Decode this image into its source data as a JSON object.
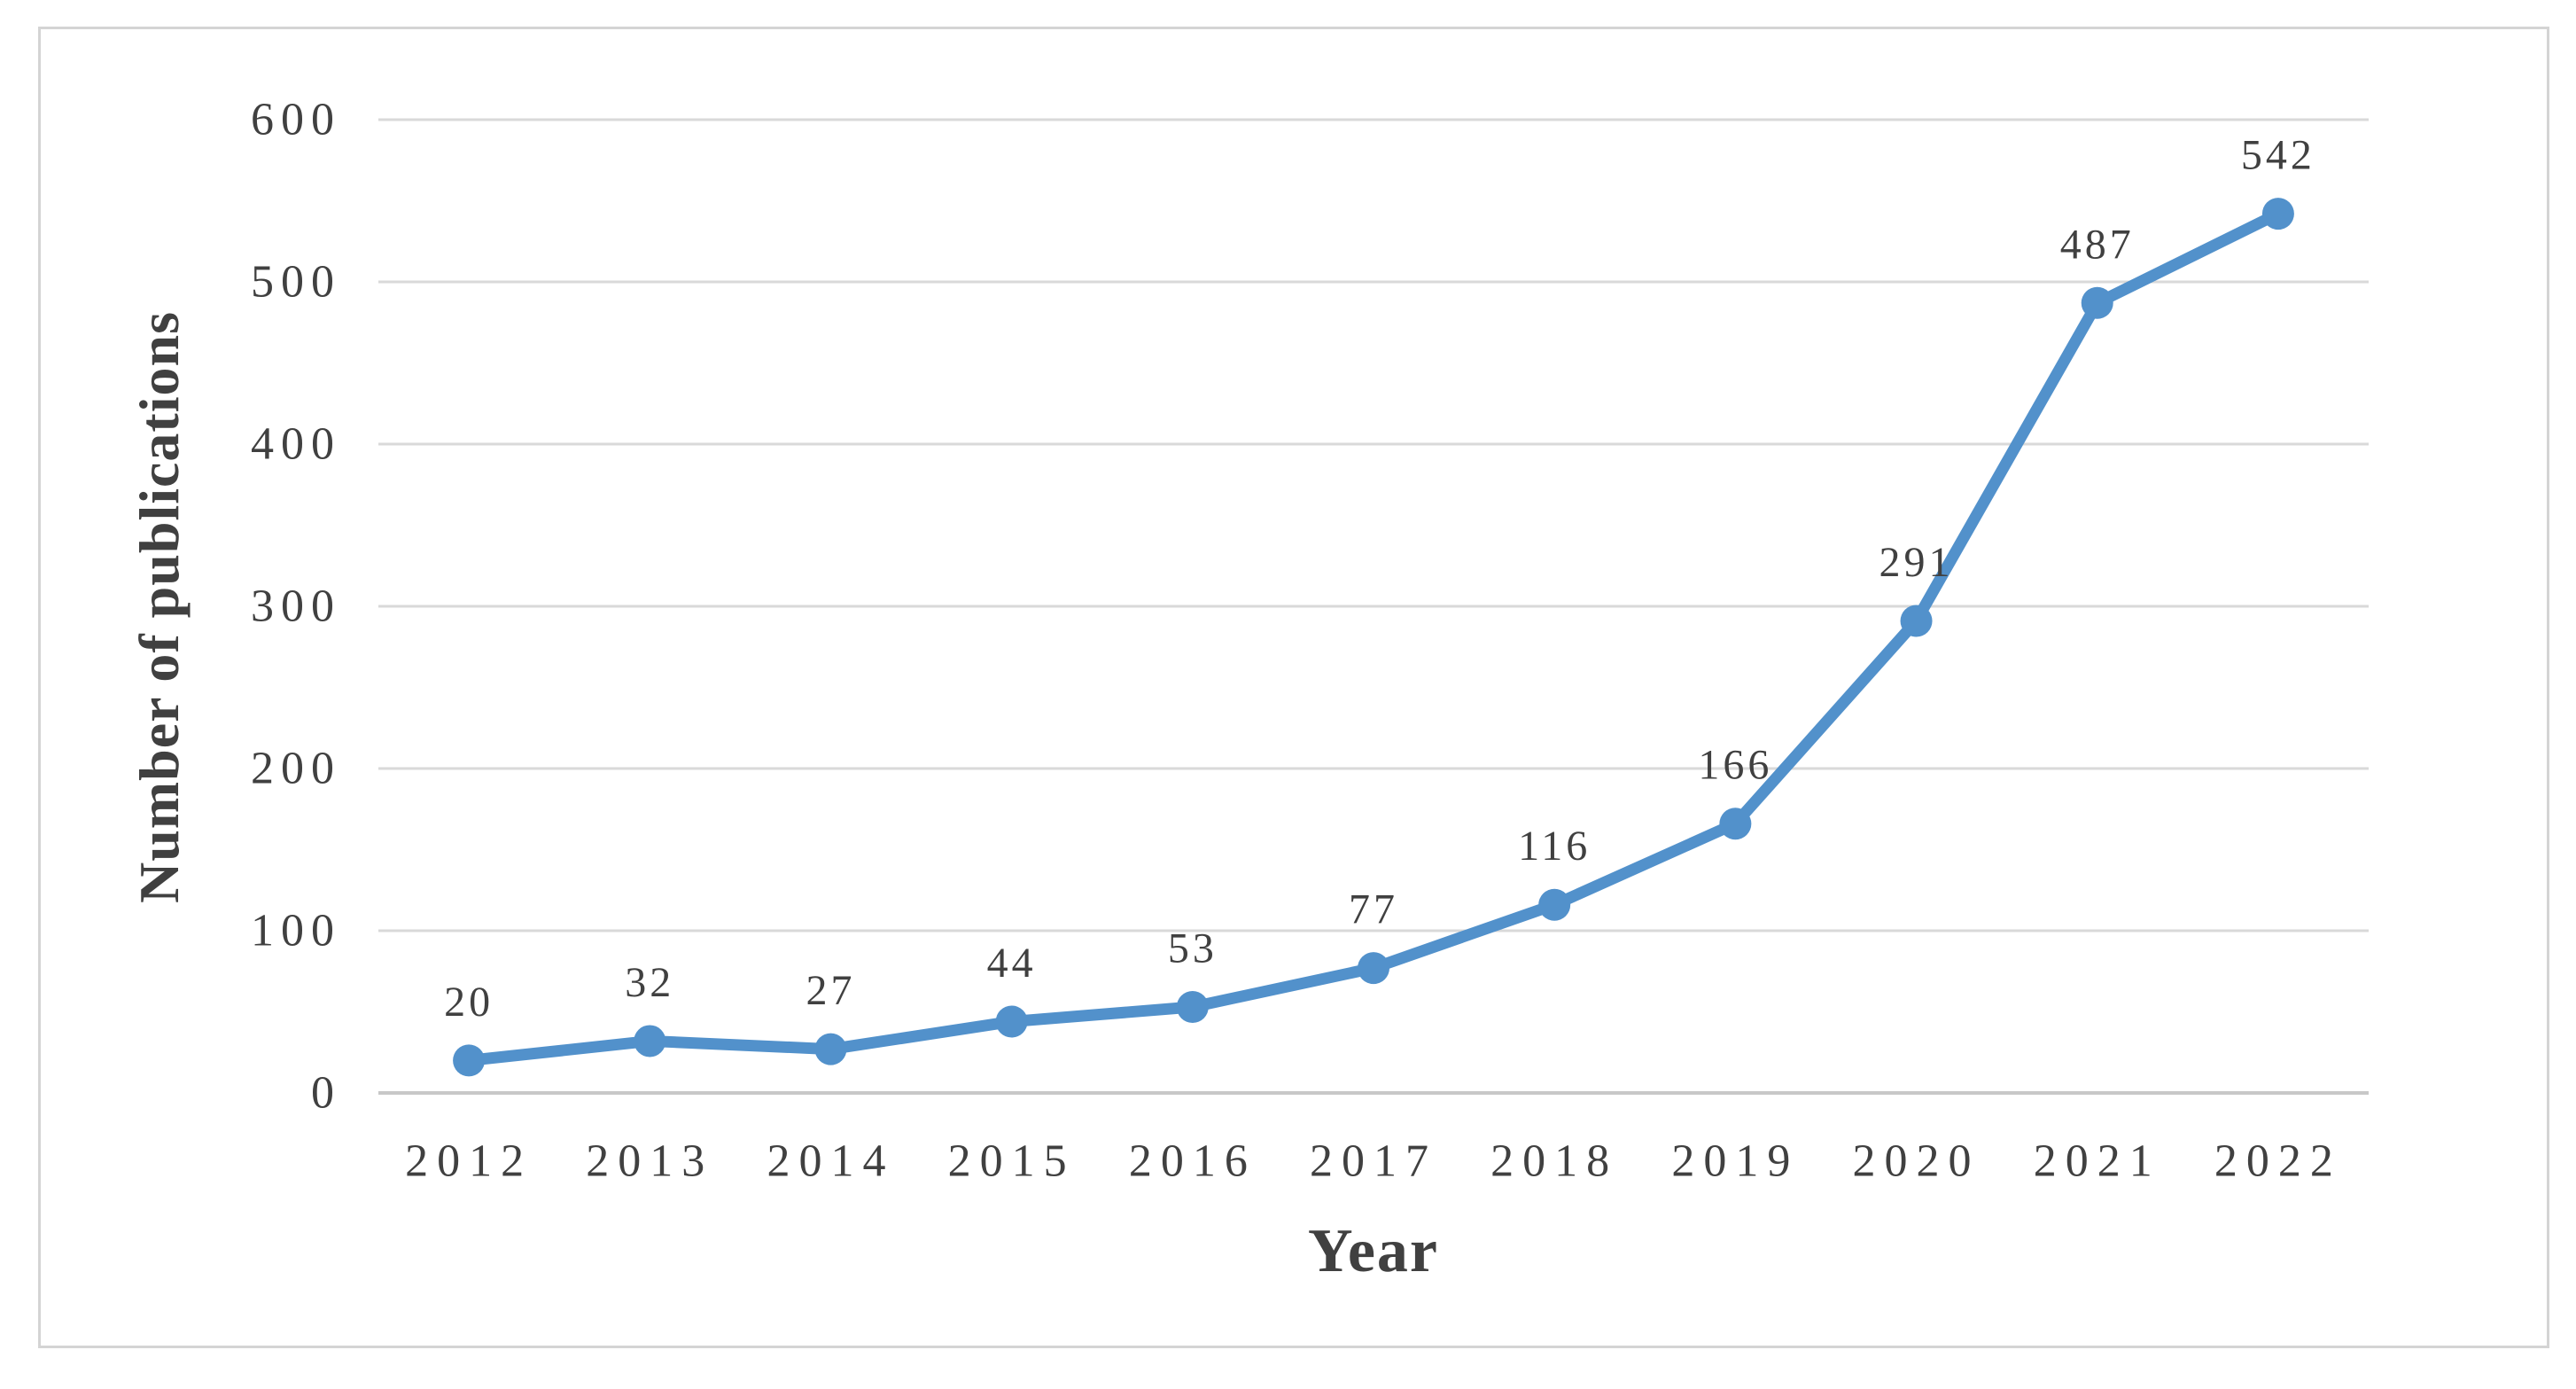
{
  "chart_data": {
    "type": "line",
    "title": "",
    "xlabel": "Year",
    "ylabel": "Number of publications",
    "categories": [
      "2012",
      "2013",
      "2014",
      "2015",
      "2016",
      "2017",
      "2018",
      "2019",
      "2020",
      "2021",
      "2022"
    ],
    "series": [
      {
        "name": "Number of publications",
        "values": [
          20,
          32,
          27,
          44,
          53,
          77,
          116,
          166,
          291,
          487,
          542
        ]
      }
    ],
    "ylim": [
      0,
      600
    ],
    "yticks": [
      0,
      100,
      200,
      300,
      400,
      500,
      600
    ],
    "grid": "horizontal",
    "legend_position": "none",
    "marker": "circle",
    "show_data_labels": true
  },
  "colors": {
    "line": "#5291CB",
    "marker": "#5291CB",
    "text": "#404040",
    "gridline": "#D9D9D9",
    "axis_line": "#C8C8C8",
    "frame_border": "#D4D4D4",
    "background": "#FFFFFF"
  }
}
